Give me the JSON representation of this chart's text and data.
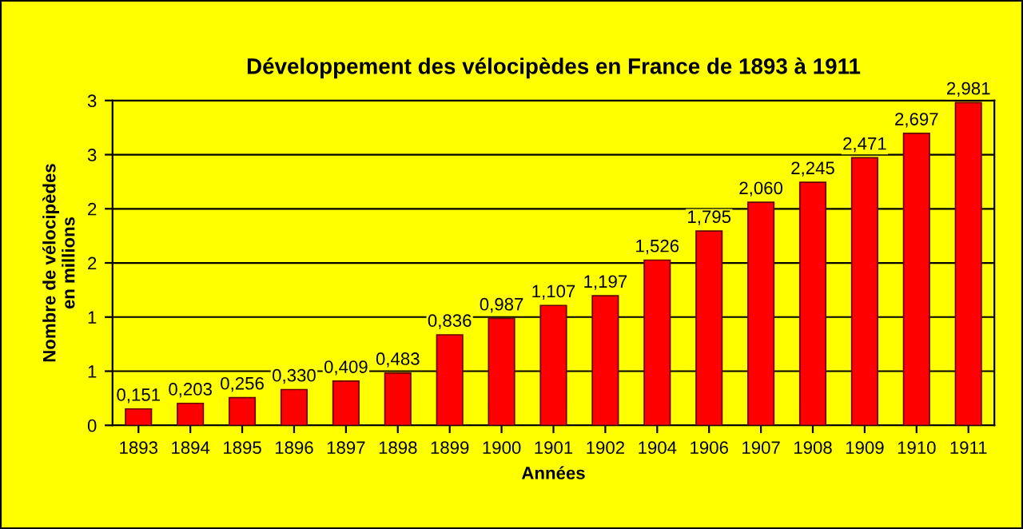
{
  "chart_data": {
    "type": "bar",
    "title": "Développement des vélocipèdes en France de 1893 à 1911",
    "xlabel": "Années",
    "ylabel": "Nombre de vélocipèdes\nen millions",
    "categories": [
      "1893",
      "1894",
      "1895",
      "1896",
      "1897",
      "1898",
      "1899",
      "1900",
      "1901",
      "1902",
      "1904",
      "1906",
      "1907",
      "1908",
      "1909",
      "1910",
      "1911"
    ],
    "values": [
      0.151,
      0.203,
      0.256,
      0.33,
      0.409,
      0.483,
      0.836,
      0.987,
      1.107,
      1.197,
      1.526,
      1.795,
      2.06,
      2.245,
      2.471,
      2.697,
      2.981
    ],
    "value_labels": [
      "0,151",
      "0,203",
      "0,256",
      "0,330",
      "0,409",
      "0,483",
      "0,836",
      "0,987",
      "1,107",
      "1,197",
      "1,526",
      "1,795",
      "2,060",
      "2,245",
      "2,471",
      "2,697",
      "2,981"
    ],
    "color": "#ff0000",
    "ylim": [
      0,
      3
    ],
    "yticks": [
      0,
      {
        "value": 0.5,
        "label": "1"
      },
      1,
      {
        "value": 1.5,
        "label": "2"
      },
      2,
      {
        "value": 2.5,
        "label": "3"
      },
      3
    ],
    "grid": "y",
    "legend": false
  }
}
